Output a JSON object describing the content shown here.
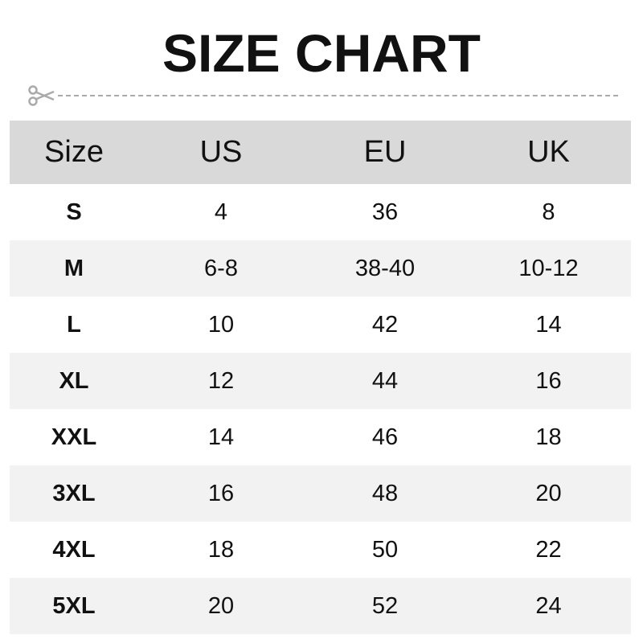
{
  "title": "SIZE CHART",
  "icons": {
    "cut": "scissors-icon"
  },
  "colors": {
    "header_bg": "#d9d9d9",
    "alt_row_bg": "#f2f2f2",
    "dash": "#aaaaaa"
  },
  "table": {
    "headers": [
      "Size",
      "US",
      "EU",
      "UK"
    ],
    "rows": [
      [
        "S",
        "4",
        "36",
        "8"
      ],
      [
        "M",
        "6-8",
        "38-40",
        "10-12"
      ],
      [
        "L",
        "10",
        "42",
        "14"
      ],
      [
        "XL",
        "12",
        "44",
        "16"
      ],
      [
        "XXL",
        "14",
        "46",
        "18"
      ],
      [
        "3XL",
        "16",
        "48",
        "20"
      ],
      [
        "4XL",
        "18",
        "50",
        "22"
      ],
      [
        "5XL",
        "20",
        "52",
        "24"
      ]
    ]
  }
}
